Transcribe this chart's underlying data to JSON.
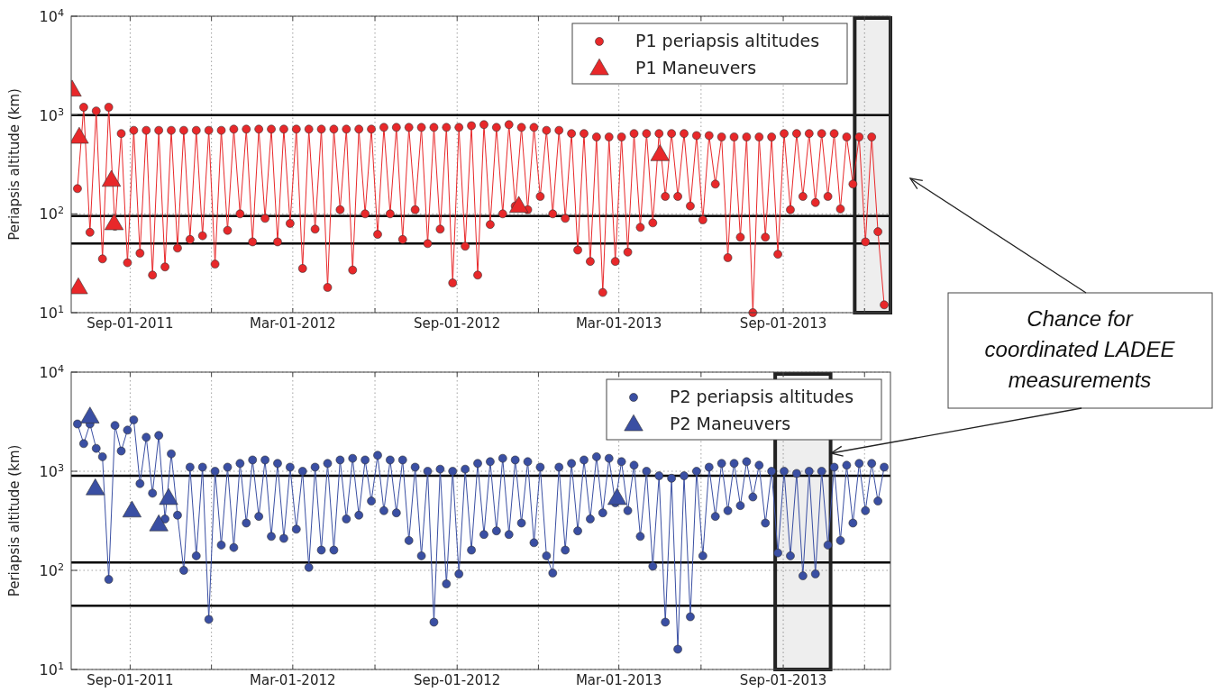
{
  "chart_data": [
    {
      "type": "line",
      "ylabel": "Periapsis altitude (km)",
      "log": "y",
      "grid": true,
      "legend": "top right",
      "xlim": [
        "2011-06-27",
        "2013-12-30"
      ],
      "xticks": [
        {
          "value": "2011-09-01",
          "label": "Sep-01-2011"
        },
        {
          "value": "2011-12-01",
          "label": null
        },
        {
          "value": "2012-03-01",
          "label": "Mar-01-2012"
        },
        {
          "value": "2012-06-01",
          "label": null
        },
        {
          "value": "2012-09-01",
          "label": "Sep-01-2012"
        },
        {
          "value": "2012-12-01",
          "label": null
        },
        {
          "value": "2013-03-01",
          "label": "Mar-01-2013"
        },
        {
          "value": "2013-06-01",
          "label": null
        },
        {
          "value": "2013-09-01",
          "label": "Sep-01-2013"
        },
        {
          "value": "2013-12-01",
          "label": null
        }
      ],
      "ylim": [
        10,
        10000
      ],
      "yticks": [
        {
          "value": 10,
          "label": "10$^{1}$"
        },
        {
          "value": 100,
          "label": "10$^{2}$"
        },
        {
          "value": 1000,
          "label": "10$^{3}$"
        },
        {
          "value": 10000,
          "label": "10$^{4}$"
        }
      ],
      "ref_lines": [
        {
          "axis": "y",
          "value": 1000,
          "color": "#000000"
        },
        {
          "axis": "y",
          "value": 95,
          "color": "#000000"
        },
        {
          "axis": "y",
          "value": 50,
          "color": "#000000"
        }
      ],
      "bands": [
        {
          "axis": "x",
          "from": "2013-11-20",
          "to": "2013-12-30",
          "color": "#222222"
        }
      ],
      "annotations": [
        "Chance for coordinated LADEE measurements"
      ],
      "x": [
        "2011-07-04",
        "2011-07-11",
        "2011-07-18",
        "2011-07-25",
        "2011-08-01",
        "2011-08-08",
        "2011-08-15",
        "2011-08-22",
        "2011-08-29",
        "2011-09-05",
        "2011-09-12",
        "2011-09-19",
        "2011-09-26",
        "2011-10-03",
        "2011-10-10",
        "2011-10-17",
        "2011-10-24",
        "2011-10-31",
        "2011-11-07",
        "2011-11-14",
        "2011-11-21",
        "2011-11-28",
        "2011-12-05",
        "2011-12-12",
        "2011-12-19",
        "2011-12-26",
        "2012-01-02",
        "2012-01-09",
        "2012-01-16",
        "2012-01-23",
        "2012-01-30",
        "2012-02-06",
        "2012-02-13",
        "2012-02-20",
        "2012-02-27",
        "2012-03-05",
        "2012-03-12",
        "2012-03-19",
        "2012-03-26",
        "2012-04-02",
        "2012-04-09",
        "2012-04-16",
        "2012-04-23",
        "2012-04-30",
        "2012-05-07",
        "2012-05-14",
        "2012-05-21",
        "2012-05-28",
        "2012-06-04",
        "2012-06-11",
        "2012-06-18",
        "2012-06-25",
        "2012-07-02",
        "2012-07-09",
        "2012-07-16",
        "2012-07-23",
        "2012-07-30",
        "2012-08-06",
        "2012-08-13",
        "2012-08-20",
        "2012-08-27",
        "2012-09-03",
        "2012-09-10",
        "2012-09-17",
        "2012-09-24",
        "2012-10-01",
        "2012-10-08",
        "2012-10-15",
        "2012-10-22",
        "2012-10-29",
        "2012-11-05",
        "2012-11-12",
        "2012-11-19",
        "2012-11-26",
        "2012-12-03",
        "2012-12-10",
        "2012-12-17",
        "2012-12-24",
        "2012-12-31",
        "2013-01-07",
        "2013-01-14",
        "2013-01-21",
        "2013-01-28",
        "2013-02-04",
        "2013-02-11",
        "2013-02-18",
        "2013-02-25",
        "2013-03-04",
        "2013-03-11",
        "2013-03-18",
        "2013-03-25",
        "2013-04-01",
        "2013-04-08",
        "2013-04-15",
        "2013-04-22",
        "2013-04-29",
        "2013-05-06",
        "2013-05-13",
        "2013-05-20",
        "2013-05-27",
        "2013-06-03",
        "2013-06-10",
        "2013-06-17",
        "2013-06-24",
        "2013-07-01",
        "2013-07-08",
        "2013-07-15",
        "2013-07-22",
        "2013-07-29",
        "2013-08-05",
        "2013-08-12",
        "2013-08-19",
        "2013-08-26",
        "2013-09-02",
        "2013-09-09",
        "2013-09-16",
        "2013-09-23",
        "2013-09-30",
        "2013-10-07",
        "2013-10-14",
        "2013-10-21",
        "2013-10-28",
        "2013-11-04",
        "2013-11-11",
        "2013-11-18",
        "2013-11-25",
        "2013-12-02",
        "2013-12-09",
        "2013-12-16",
        "2013-12-23"
      ],
      "series": [
        {
          "name": "P1 periapsis altitudes",
          "type": "line",
          "marker": "circle",
          "color": "#e8282a",
          "values": [
            180,
            1200,
            65,
            1100,
            35,
            1200,
            75,
            650,
            32,
            700,
            40,
            700,
            24,
            700,
            29,
            700,
            45,
            700,
            55,
            700,
            60,
            700,
            31,
            700,
            68,
            720,
            100,
            720,
            52,
            720,
            90,
            720,
            52,
            720,
            80,
            720,
            28,
            720,
            70,
            720,
            18,
            720,
            110,
            720,
            27,
            720,
            100,
            720,
            62,
            750,
            100,
            750,
            55,
            750,
            110,
            750,
            50,
            750,
            70,
            750,
            20,
            750,
            47,
            780,
            24,
            800,
            78,
            750,
            100,
            800,
            120,
            750,
            110,
            750,
            150,
            700,
            100,
            700,
            90,
            650,
            43,
            650,
            33,
            600,
            16,
            600,
            33,
            600,
            41,
            650,
            73,
            650,
            81,
            650,
            150,
            650,
            150,
            650,
            120,
            620,
            87,
            620,
            200,
            600,
            36,
            600,
            58,
            600,
            10,
            600,
            58,
            600,
            39,
            650,
            110,
            650,
            150,
            650,
            130,
            650,
            150,
            650,
            112,
            600,
            200,
            600,
            52,
            600,
            66,
            12
          ]
        },
        {
          "name": "P1 Maneuvers",
          "type": "scatter",
          "marker": "triangle",
          "color": "#e8282a",
          "x": [
            "2011-06-28",
            "2011-07-05",
            "2011-07-06",
            "2011-08-11",
            "2011-08-14",
            "2012-11-09",
            "2013-04-16"
          ],
          "values": [
            1800,
            18,
            600,
            220,
            80,
            120,
            400
          ]
        }
      ]
    },
    {
      "type": "line",
      "ylabel": "Periapsis altitude (km)",
      "log": "y",
      "grid": true,
      "legend": "top right",
      "xlim": [
        "2011-06-27",
        "2013-12-30"
      ],
      "xticks": [
        {
          "value": "2011-09-01",
          "label": "Sep-01-2011"
        },
        {
          "value": "2011-12-01",
          "label": null
        },
        {
          "value": "2012-03-01",
          "label": "Mar-01-2012"
        },
        {
          "value": "2012-06-01",
          "label": null
        },
        {
          "value": "2012-09-01",
          "label": "Sep-01-2012"
        },
        {
          "value": "2012-12-01",
          "label": null
        },
        {
          "value": "2013-03-01",
          "label": "Mar-01-2013"
        },
        {
          "value": "2013-06-01",
          "label": null
        },
        {
          "value": "2013-09-01",
          "label": "Sep-01-2013"
        },
        {
          "value": "2013-12-01",
          "label": null
        }
      ],
      "ylim": [
        10,
        10000
      ],
      "yticks": [
        {
          "value": 10,
          "label": "10$^{1}$"
        },
        {
          "value": 100,
          "label": "10$^{2}$"
        },
        {
          "value": 1000,
          "label": "10$^{3}$"
        },
        {
          "value": 10000,
          "label": "10$^{4}$"
        }
      ],
      "ref_lines": [
        {
          "axis": "y",
          "value": 900,
          "color": "#000000"
        },
        {
          "axis": "y",
          "value": 120,
          "color": "#000000"
        },
        {
          "axis": "y",
          "value": 44,
          "color": "#000000"
        }
      ],
      "bands": [
        {
          "axis": "x",
          "from": "2013-08-23",
          "to": "2013-10-24",
          "color": "#222222"
        }
      ],
      "x": [
        "2011-07-04",
        "2011-07-11",
        "2011-07-18",
        "2011-07-25",
        "2011-08-01",
        "2011-08-08",
        "2011-08-15",
        "2011-08-22",
        "2011-08-29",
        "2011-09-05",
        "2011-09-12",
        "2011-09-19",
        "2011-09-26",
        "2011-10-03",
        "2011-10-10",
        "2011-10-17",
        "2011-10-24",
        "2011-10-31",
        "2011-11-07",
        "2011-11-14",
        "2011-11-21",
        "2011-11-28",
        "2011-12-05",
        "2011-12-12",
        "2011-12-19",
        "2011-12-26",
        "2012-01-02",
        "2012-01-09",
        "2012-01-16",
        "2012-01-23",
        "2012-01-30",
        "2012-02-06",
        "2012-02-13",
        "2012-02-20",
        "2012-02-27",
        "2012-03-05",
        "2012-03-12",
        "2012-03-19",
        "2012-03-26",
        "2012-04-02",
        "2012-04-09",
        "2012-04-16",
        "2012-04-23",
        "2012-04-30",
        "2012-05-07",
        "2012-05-14",
        "2012-05-21",
        "2012-05-28",
        "2012-06-04",
        "2012-06-11",
        "2012-06-18",
        "2012-06-25",
        "2012-07-02",
        "2012-07-09",
        "2012-07-16",
        "2012-07-23",
        "2012-07-30",
        "2012-08-06",
        "2012-08-13",
        "2012-08-20",
        "2012-08-27",
        "2012-09-03",
        "2012-09-10",
        "2012-09-17",
        "2012-09-24",
        "2012-10-01",
        "2012-10-08",
        "2012-10-15",
        "2012-10-22",
        "2012-10-29",
        "2012-11-05",
        "2012-11-12",
        "2012-11-19",
        "2012-11-26",
        "2012-12-03",
        "2012-12-10",
        "2012-12-17",
        "2012-12-24",
        "2012-12-31",
        "2013-01-07",
        "2013-01-14",
        "2013-01-21",
        "2013-01-28",
        "2013-02-04",
        "2013-02-11",
        "2013-02-18",
        "2013-02-25",
        "2013-03-04",
        "2013-03-11",
        "2013-03-18",
        "2013-03-25",
        "2013-04-01",
        "2013-04-08",
        "2013-04-15",
        "2013-04-22",
        "2013-04-29",
        "2013-05-06",
        "2013-05-13",
        "2013-05-20",
        "2013-05-27",
        "2013-06-03",
        "2013-06-10",
        "2013-06-17",
        "2013-06-24",
        "2013-07-01",
        "2013-07-08",
        "2013-07-15",
        "2013-07-22",
        "2013-07-29",
        "2013-08-05",
        "2013-08-12",
        "2013-08-19",
        "2013-08-26",
        "2013-09-02",
        "2013-09-09",
        "2013-09-16",
        "2013-09-23",
        "2013-09-30",
        "2013-10-07",
        "2013-10-14",
        "2013-10-21",
        "2013-10-28",
        "2013-11-04",
        "2013-11-11",
        "2013-11-18",
        "2013-11-25",
        "2013-12-02",
        "2013-12-09",
        "2013-12-16",
        "2013-12-23"
      ],
      "series": [
        {
          "name": "P2 periapsis altitudes",
          "type": "line",
          "marker": "circle",
          "color": "#3a4fa3",
          "values": [
            3000,
            1900,
            3000,
            1700,
            1400,
            81,
            2900,
            1600,
            2600,
            3300,
            750,
            2200,
            600,
            2300,
            330,
            1500,
            360,
            100,
            1100,
            140,
            1100,
            32,
            1000,
            180,
            1100,
            170,
            1200,
            300,
            1300,
            350,
            1300,
            220,
            1200,
            210,
            1100,
            260,
            1000,
            107,
            1100,
            160,
            1200,
            160,
            1300,
            330,
            1350,
            360,
            1300,
            500,
            1450,
            400,
            1300,
            380,
            1300,
            200,
            1100,
            140,
            1000,
            30,
            1050,
            73,
            1000,
            92,
            1050,
            160,
            1200,
            230,
            1250,
            250,
            1350,
            230,
            1300,
            300,
            1250,
            190,
            1100,
            140,
            94,
            1100,
            160,
            1200,
            250,
            1300,
            330,
            1400,
            380,
            1350,
            480,
            1250,
            400,
            1150,
            220,
            1000,
            110,
            900,
            30,
            850,
            16,
            900,
            34,
            1000,
            140,
            1100,
            350,
            1200,
            400,
            1200,
            450,
            1250,
            550,
            1150,
            300,
            1000,
            150,
            1000,
            140,
            950,
            88,
            1000,
            92,
            1000,
            180,
            1100,
            200,
            1150,
            300,
            1200,
            400,
            1200,
            500,
            1100
          ]
        },
        {
          "name": "P2 Maneuvers",
          "type": "scatter",
          "marker": "triangle",
          "color": "#3a4fa3",
          "x": [
            "2011-07-18",
            "2011-07-24",
            "2011-09-03",
            "2011-10-03",
            "2011-10-14",
            "2013-02-27"
          ],
          "values": [
            3550,
            670,
            400,
            290,
            535,
            535
          ]
        }
      ]
    }
  ]
}
